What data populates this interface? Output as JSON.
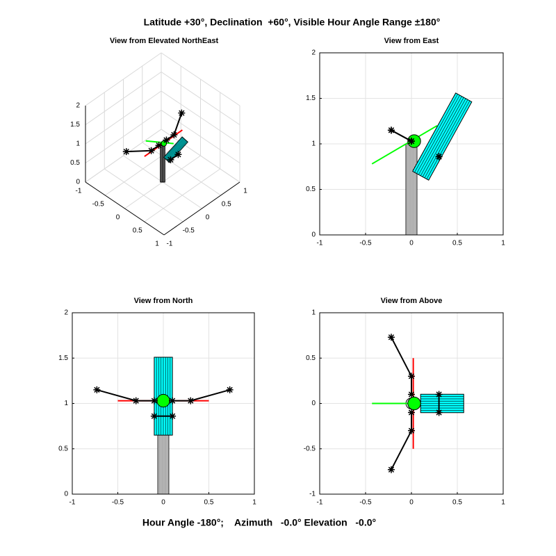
{
  "title": "Latitude +30°, Declination  +60°, Visible Hour Angle Range ±180°",
  "footer": "Hour Angle -180°;    Azimuth   -0.0° Elevation   -0.0°",
  "model": {
    "layers": [
      {
        "kind": "cylinder",
        "from": [
          0,
          0,
          0
        ],
        "to": [
          0,
          0,
          1
        ],
        "radius": 0.06,
        "color": "#000000",
        "fill": "#ffffff"
      },
      {
        "kind": "line",
        "color": "#00ff00",
        "width": 2,
        "points": [
          [
            -0.43,
            0,
            0.78
          ],
          [
            0.28,
            0,
            1.2
          ]
        ]
      },
      {
        "kind": "line",
        "color": "#ff0000",
        "width": 2,
        "points": [
          [
            0.02,
            -0.5,
            1.03
          ],
          [
            0.02,
            0.5,
            1.03
          ]
        ]
      },
      {
        "kind": "cylinder",
        "from": [
          0.1,
          0,
          0.65
        ],
        "to": [
          0.57,
          0,
          1.51
        ],
        "radius": 0.1,
        "color": "#000000",
        "fill": "#00ffff"
      },
      {
        "kind": "disk",
        "center": [
          0.03,
          0,
          1.03
        ],
        "radius": 0.07,
        "color": "#000000",
        "fill": "#00ff00"
      },
      {
        "kind": "line",
        "color": "#000000",
        "width": 2,
        "marker": "*",
        "points": [
          [
            -0.22,
            0.73,
            1.15
          ],
          [
            0,
            0.3,
            1.03
          ],
          [
            0,
            0.1,
            1.03
          ]
        ]
      },
      {
        "kind": "line",
        "color": "#000000",
        "width": 2,
        "marker": "*",
        "points": [
          [
            -0.22,
            -0.73,
            1.15
          ],
          [
            0,
            -0.3,
            1.03
          ],
          [
            0,
            -0.1,
            1.03
          ]
        ]
      },
      {
        "kind": "line",
        "color": "#000000",
        "width": 2,
        "marker": "*",
        "points": [
          [
            0.3,
            0.1,
            0.86
          ],
          [
            0.3,
            -0.1,
            0.86
          ]
        ]
      }
    ]
  },
  "chart_data": [
    {
      "type": "3d",
      "title": "View from Elevated NorthEast",
      "xlim": [
        -1,
        1
      ],
      "ylim": [
        -1,
        1
      ],
      "zlim": [
        0,
        2
      ],
      "xticks": [
        -1,
        -0.5,
        0,
        0.5,
        1
      ],
      "yticks": [
        -1,
        -0.5,
        0,
        0.5,
        1
      ],
      "zticks": [
        0,
        0.5,
        1,
        1.5,
        2
      ],
      "grid": true
    },
    {
      "type": "view",
      "view": "east",
      "title": "View from East",
      "xlim": [
        -1,
        1
      ],
      "ylim": [
        0,
        2
      ],
      "xticks": [
        -1,
        -0.5,
        0,
        0.5,
        1
      ],
      "yticks": [
        0,
        0.5,
        1,
        1.5,
        2
      ],
      "grid": true
    },
    {
      "type": "view",
      "view": "north",
      "title": "View from North",
      "xlim": [
        -1,
        1
      ],
      "ylim": [
        0,
        2
      ],
      "xticks": [
        -1,
        -0.5,
        0,
        0.5,
        1
      ],
      "yticks": [
        0,
        0.5,
        1,
        1.5,
        2
      ],
      "grid": true
    },
    {
      "type": "view",
      "view": "above",
      "title": "View from Above",
      "xlim": [
        -1,
        1
      ],
      "ylim": [
        -1,
        1
      ],
      "xticks": [
        -1,
        -0.5,
        0,
        0.5,
        1
      ],
      "yticks": [
        -1,
        -0.5,
        0,
        0.5,
        1
      ],
      "grid": true
    }
  ]
}
